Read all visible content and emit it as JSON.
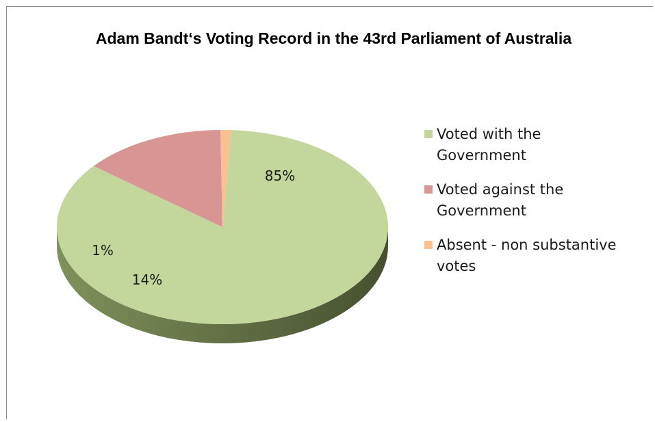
{
  "chart_data": {
    "type": "pie",
    "title": "Adam Bandt‘s Voting Record in the 43rd Parliament of Australia",
    "slices": [
      {
        "label": "Voted with the\nGovernment",
        "value": 85,
        "data_label": "85%",
        "color": "#c3d69b"
      },
      {
        "label": "Voted against the\nGovernment",
        "value": 14,
        "data_label": "14%",
        "color": "#d99594"
      },
      {
        "label": "Absent - non substantive\nvotes",
        "value": 1,
        "data_label": "1%",
        "color": "#fac08f"
      }
    ],
    "legend_position": "right",
    "style": "3d"
  }
}
